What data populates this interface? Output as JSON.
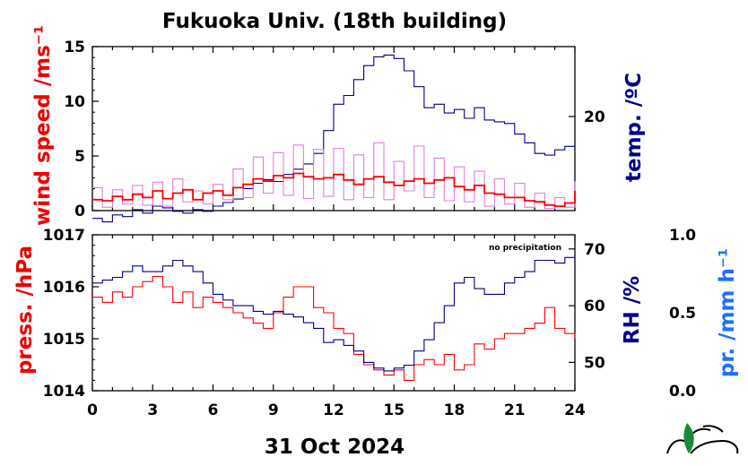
{
  "chart_data": [
    {
      "type": "line",
      "title": "Fukuoka Univ. (18th building)",
      "x_ticks": [
        "0",
        "3",
        "6",
        "9",
        "12",
        "15",
        "18",
        "21",
        "24"
      ],
      "xlim": [
        0,
        24
      ],
      "ylabel_left": "wind speed /ms⁻¹",
      "ylabel_right": "temp. /ºC",
      "ylim_left": [
        0,
        15
      ],
      "left_ticks": [
        0,
        5,
        10,
        15
      ],
      "right_ticks": [
        20
      ],
      "series": [
        {
          "axis": "right",
          "color": "#00008b",
          "x": [
            0,
            0.5,
            1,
            1.5,
            2,
            2.5,
            3,
            3.5,
            4,
            4.5,
            5,
            5.5,
            6,
            6.5,
            7,
            7.5,
            8,
            8.5,
            9,
            9.5,
            10,
            10.5,
            11,
            11.5,
            12,
            12.5,
            13,
            13.5,
            14,
            14.5,
            15,
            15.5,
            16,
            16.5,
            17,
            17.5,
            18,
            18.5,
            19,
            19.5,
            20,
            20.5,
            21,
            21.5,
            22,
            22.5,
            23,
            23.5,
            24
          ],
          "values": [
            14.2,
            14.0,
            14.4,
            14.3,
            14.7,
            14.5,
            14.9,
            14.8,
            14.6,
            14.5,
            14.7,
            14.6,
            14.9,
            15.1,
            15.3,
            15.9,
            16.2,
            16.4,
            16.3,
            16.7,
            17.0,
            17.3,
            17.9,
            19.2,
            20.7,
            21.2,
            22.1,
            22.9,
            23.4,
            23.5,
            23.3,
            22.6,
            21.7,
            20.5,
            20.7,
            20.2,
            20.4,
            19.9,
            20.5,
            19.8,
            19.7,
            19.6,
            19.0,
            18.5,
            17.9,
            17.8,
            18.1,
            18.3,
            18.5
          ]
        },
        {
          "axis": "left",
          "color": "#e080e0",
          "x": [
            0,
            0.5,
            1,
            1.5,
            2,
            2.5,
            3,
            3.5,
            4,
            4.5,
            5,
            5.5,
            6,
            6.5,
            7,
            7.5,
            8,
            8.5,
            9,
            9.5,
            10,
            10.5,
            11,
            11.5,
            12,
            12.5,
            13,
            13.5,
            14,
            14.5,
            15,
            15.5,
            16,
            16.5,
            17,
            17.5,
            18,
            18.5,
            19,
            19.5,
            20,
            20.5,
            21,
            21.5,
            22,
            22.5,
            23,
            23.5,
            24
          ],
          "values": [
            2.1,
            0.3,
            1.9,
            0.6,
            2.3,
            0.5,
            2.6,
            0.4,
            2.9,
            0.8,
            1.8,
            0.6,
            2.4,
            1.0,
            3.8,
            1.2,
            4.9,
            1.6,
            5.3,
            1.4,
            6.0,
            1.1,
            5.6,
            1.3,
            5.7,
            1.0,
            5.1,
            1.2,
            6.2,
            1.0,
            4.5,
            1.8,
            5.9,
            1.2,
            4.8,
            0.9,
            4.0,
            0.8,
            3.6,
            0.4,
            2.9,
            0.6,
            2.5,
            0.3,
            1.6,
            0.2,
            1.2,
            0.3,
            2.7
          ]
        },
        {
          "axis": "left",
          "color": "#ff0000",
          "x": [
            0,
            0.5,
            1,
            1.5,
            2,
            2.5,
            3,
            3.5,
            4,
            4.5,
            5,
            5.5,
            6,
            6.5,
            7,
            7.5,
            8,
            8.5,
            9,
            9.5,
            10,
            10.5,
            11,
            11.5,
            12,
            12.5,
            13,
            13.5,
            14,
            14.5,
            15,
            15.5,
            16,
            16.5,
            17,
            17.5,
            18,
            18.5,
            19,
            19.5,
            20,
            20.5,
            21,
            21.5,
            22,
            22.5,
            23,
            23.5,
            24
          ],
          "values": [
            1.0,
            0.9,
            1.3,
            1.0,
            1.5,
            1.2,
            1.8,
            1.1,
            1.6,
            1.9,
            1.0,
            1.6,
            1.8,
            1.4,
            2.1,
            2.4,
            2.9,
            2.7,
            3.2,
            3.0,
            3.4,
            3.1,
            2.9,
            3.0,
            3.3,
            2.8,
            2.4,
            2.9,
            3.1,
            2.6,
            2.3,
            2.7,
            2.9,
            2.5,
            2.8,
            3.0,
            2.2,
            1.9,
            2.3,
            1.6,
            1.5,
            1.2,
            1.2,
            0.9,
            0.8,
            0.5,
            0.4,
            0.7,
            1.8
          ]
        }
      ]
    },
    {
      "type": "line",
      "xlim": [
        0,
        24
      ],
      "x_ticks": [
        "0",
        "3",
        "6",
        "9",
        "12",
        "15",
        "18",
        "21",
        "24"
      ],
      "xlabel": "31 Oct 2024",
      "ylabel_left": "press. /hPa",
      "ylabel_right": "RH /%",
      "ylabel_far_right": "pr. /mm h⁻¹",
      "ylim_left": [
        1014,
        1017
      ],
      "left_ticks": [
        "1014",
        "1015",
        "1016",
        "1017"
      ],
      "ylim_right": [
        45,
        72.5
      ],
      "right_ticks": [
        "50",
        "60",
        "70"
      ],
      "far_right_ticks": [
        "0.0",
        "0.5",
        "1.0"
      ],
      "note": "no precipitation",
      "series": [
        {
          "axis": "left",
          "color": "#ff0000",
          "x": [
            0,
            0.5,
            1,
            1.5,
            2,
            2.5,
            3,
            3.5,
            4,
            4.5,
            5,
            5.5,
            6,
            6.5,
            7,
            7.5,
            8,
            8.5,
            9,
            9.5,
            10,
            10.5,
            11,
            11.5,
            12,
            12.5,
            13,
            13.5,
            14,
            14.5,
            15,
            15.5,
            16,
            16.5,
            17,
            17.5,
            18,
            18.5,
            19,
            19.5,
            20,
            20.5,
            21,
            21.5,
            22,
            22.5,
            23,
            23.5,
            24
          ],
          "values": [
            1015.8,
            1015.7,
            1015.9,
            1015.8,
            1016.0,
            1016.1,
            1016.2,
            1016.0,
            1015.7,
            1015.9,
            1015.6,
            1015.8,
            1015.7,
            1015.6,
            1015.5,
            1015.4,
            1015.3,
            1015.2,
            1015.5,
            1015.8,
            1016.0,
            1016.0,
            1015.6,
            1015.5,
            1015.2,
            1015.1,
            1014.7,
            1014.5,
            1014.4,
            1014.3,
            1014.4,
            1014.2,
            1014.5,
            1014.6,
            1014.5,
            1014.7,
            1014.4,
            1014.5,
            1014.9,
            1014.8,
            1015.0,
            1015.1,
            1015.1,
            1015.2,
            1015.3,
            1015.6,
            1015.2,
            1015.1,
            1015.0
          ]
        },
        {
          "axis": "right",
          "color": "#00008b",
          "x": [
            0,
            0.5,
            1,
            1.5,
            2,
            2.5,
            3,
            3.5,
            4,
            4.5,
            5,
            5.5,
            6,
            6.5,
            7,
            7.5,
            8,
            8.5,
            9,
            9.5,
            10,
            10.5,
            11,
            11.5,
            12,
            12.5,
            13,
            13.5,
            14,
            14.5,
            15,
            15.5,
            16,
            16.5,
            17,
            17.5,
            18,
            18.5,
            19,
            19.5,
            20,
            20.5,
            21,
            21.5,
            22,
            22.5,
            23,
            23.5,
            24
          ],
          "values": [
            64,
            64.5,
            65,
            66,
            67,
            66,
            66,
            67,
            68,
            67,
            66,
            64,
            62,
            61,
            60,
            60,
            59,
            58.5,
            59,
            58.5,
            58,
            57,
            56,
            53.5,
            54,
            53,
            52,
            50,
            49,
            48.5,
            49,
            49.5,
            52,
            54,
            57,
            60,
            64,
            65,
            63,
            62,
            62,
            64,
            65,
            66,
            68,
            68,
            67.5,
            68.5,
            68
          ]
        }
      ]
    }
  ]
}
